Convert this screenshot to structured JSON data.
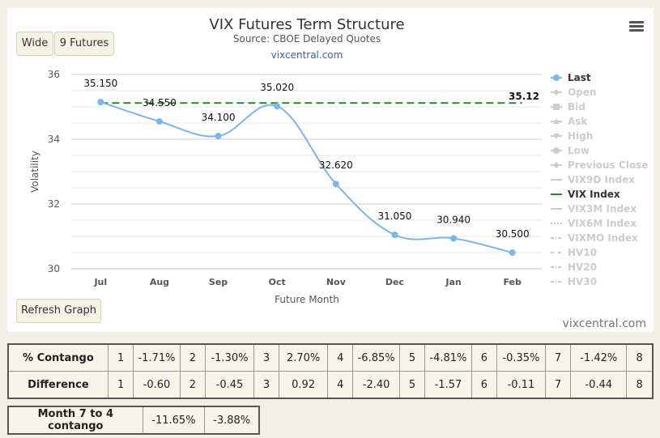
{
  "chart_data": {
    "type": "line",
    "title": "VIX Futures Term Structure",
    "subtitle": "Source: CBOE Delayed Quotes",
    "subtitle_link": "vixcentral.com",
    "xlabel": "Future Month",
    "ylabel": "Volatility",
    "categories": [
      "Jul",
      "Aug",
      "Sep",
      "Oct",
      "Nov",
      "Dec",
      "Jan",
      "Feb"
    ],
    "ylim": [
      30,
      36
    ],
    "yticks": [
      "30",
      "32",
      "34",
      "36"
    ],
    "grid": true,
    "legend_position": "right",
    "series": [
      {
        "name": "Last",
        "values": [
          35.15,
          34.55,
          34.1,
          35.02,
          32.62,
          31.05,
          30.94,
          30.5
        ],
        "labels": [
          "35.150",
          "34.550",
          "34.100",
          "35.020",
          "32.620",
          "31.050",
          "30.940",
          "30.500"
        ],
        "color": "#7cb5ec",
        "active": true
      },
      {
        "name": "VIX Index",
        "value": 35.12,
        "label": "35.12",
        "color": "#228b22",
        "active": true,
        "style": "dashed"
      }
    ],
    "legend": [
      {
        "name": "Last",
        "active": true,
        "symbol": "dot-line",
        "color": "#7cb5ec"
      },
      {
        "name": "Open",
        "active": false,
        "symbol": "diamond-line"
      },
      {
        "name": "Bid",
        "active": false,
        "symbol": "square-line"
      },
      {
        "name": "Ask",
        "active": false,
        "symbol": "triangle-line"
      },
      {
        "name": "High",
        "active": false,
        "symbol": "triangle-down-line"
      },
      {
        "name": "Low",
        "active": false,
        "symbol": "dot-line"
      },
      {
        "name": "Previous Close",
        "active": false,
        "symbol": "diamond-line"
      },
      {
        "name": "VIX9D Index",
        "active": false,
        "symbol": "line"
      },
      {
        "name": "VIX Index",
        "active": true,
        "symbol": "line",
        "color": "#228b22"
      },
      {
        "name": "VIX3M Index",
        "active": false,
        "symbol": "line"
      },
      {
        "name": "VIX6M Index",
        "active": false,
        "symbol": "dotted"
      },
      {
        "name": "VIXMO Index",
        "active": false,
        "symbol": "dashdot"
      },
      {
        "name": "HV10",
        "active": false,
        "symbol": "dashdot"
      },
      {
        "name": "HV20",
        "active": false,
        "symbol": "dashdot"
      },
      {
        "name": "HV30",
        "active": false,
        "symbol": "dashdot"
      }
    ]
  },
  "buttons": {
    "wide": "Wide",
    "futures": "9 Futures",
    "refresh": "Refresh Graph"
  },
  "credit": "vixcentral.com",
  "contango_table": {
    "rows": [
      {
        "label": "% Contango",
        "cells": [
          "1",
          "-1.71%",
          "2",
          "-1.30%",
          "3",
          "2.70%",
          "4",
          "-6.85%",
          "5",
          "-4.81%",
          "6",
          "-0.35%",
          "7",
          "-1.42%",
          "8"
        ]
      },
      {
        "label": "Difference",
        "cells": [
          "1",
          "-0.60",
          "2",
          "-0.45",
          "3",
          "0.92",
          "4",
          "-2.40",
          "5",
          "-1.57",
          "6",
          "-0.11",
          "7",
          "-0.44",
          "8"
        ]
      }
    ]
  },
  "month_table": {
    "label": "Month 7 to 4 contango",
    "values": [
      "-11.65%",
      "-3.88%"
    ]
  }
}
